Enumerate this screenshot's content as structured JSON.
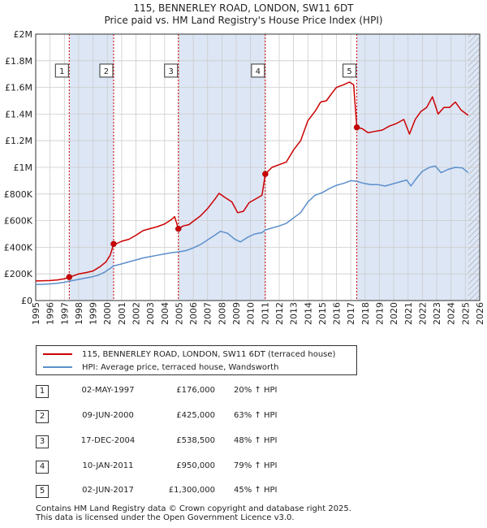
{
  "title_line1": "115, BENNERLEY ROAD, LONDON, SW11 6DT",
  "title_line2": "Price paid vs. HM Land Registry's House Price Index (HPI)",
  "colors": {
    "price": "#cc0000",
    "hpi": "#5b8fcc",
    "shade": "#dde6f5",
    "vline": "#cc0000",
    "grid": "#cccccc"
  },
  "chart_data": {
    "type": "line",
    "title": "Price paid vs. HM Land Registry's House Price Index (HPI)",
    "xlim": [
      1995,
      2026
    ],
    "ylim": [
      0,
      2000000
    ],
    "y_ticks": [
      {
        "value": 0,
        "label": "£0"
      },
      {
        "value": 200000,
        "label": "£200K"
      },
      {
        "value": 400000,
        "label": "£400K"
      },
      {
        "value": 600000,
        "label": "£600K"
      },
      {
        "value": 800000,
        "label": "£800K"
      },
      {
        "value": 1000000,
        "label": "£1M"
      },
      {
        "value": 1200000,
        "label": "£1.2M"
      },
      {
        "value": 1400000,
        "label": "£1.4M"
      },
      {
        "value": 1600000,
        "label": "£1.6M"
      },
      {
        "value": 1800000,
        "label": "£1.8M"
      },
      {
        "value": 2000000,
        "label": "£2M"
      }
    ],
    "x_ticks": [
      "1995",
      "1996",
      "1997",
      "1998",
      "1999",
      "2000",
      "2001",
      "2002",
      "2003",
      "2004",
      "2005",
      "2006",
      "2007",
      "2008",
      "2009",
      "2010",
      "2011",
      "2012",
      "2013",
      "2014",
      "2015",
      "2016",
      "2017",
      "2018",
      "2019",
      "2020",
      "2021",
      "2022",
      "2023",
      "2024",
      "2025",
      "2026"
    ],
    "series": [
      {
        "name": "115, BENNERLEY ROAD, LONDON, SW11 6DT (terraced house)",
        "color": "#cc0000",
        "points": [
          [
            1995.0,
            147000
          ],
          [
            1995.5,
            149000
          ],
          [
            1996.0,
            150000
          ],
          [
            1996.5,
            155000
          ],
          [
            1997.0,
            163000
          ],
          [
            1997.34,
            176000
          ],
          [
            1997.7,
            188000
          ],
          [
            1998.0,
            200000
          ],
          [
            1998.5,
            210000
          ],
          [
            1999.0,
            222000
          ],
          [
            1999.5,
            255000
          ],
          [
            1999.9,
            290000
          ],
          [
            2000.2,
            340000
          ],
          [
            2000.44,
            425000
          ],
          [
            2000.7,
            430000
          ],
          [
            2001.0,
            445000
          ],
          [
            2001.5,
            460000
          ],
          [
            2002.0,
            490000
          ],
          [
            2002.5,
            525000
          ],
          [
            2003.0,
            540000
          ],
          [
            2003.5,
            555000
          ],
          [
            2004.0,
            575000
          ],
          [
            2004.5,
            610000
          ],
          [
            2004.7,
            630000
          ],
          [
            2004.96,
            538500
          ],
          [
            2005.3,
            560000
          ],
          [
            2005.7,
            570000
          ],
          [
            2006.0,
            595000
          ],
          [
            2006.5,
            635000
          ],
          [
            2007.0,
            690000
          ],
          [
            2007.5,
            760000
          ],
          [
            2007.8,
            805000
          ],
          [
            2008.2,
            775000
          ],
          [
            2008.7,
            740000
          ],
          [
            2009.1,
            660000
          ],
          [
            2009.5,
            670000
          ],
          [
            2009.9,
            735000
          ],
          [
            2010.4,
            765000
          ],
          [
            2010.8,
            790000
          ],
          [
            2011.03,
            950000
          ],
          [
            2011.5,
            1000000
          ],
          [
            2012.0,
            1020000
          ],
          [
            2012.5,
            1040000
          ],
          [
            2013.0,
            1130000
          ],
          [
            2013.5,
            1200000
          ],
          [
            2014.0,
            1350000
          ],
          [
            2014.5,
            1420000
          ],
          [
            2014.9,
            1490000
          ],
          [
            2015.3,
            1500000
          ],
          [
            2015.7,
            1560000
          ],
          [
            2016.0,
            1600000
          ],
          [
            2016.5,
            1620000
          ],
          [
            2016.9,
            1640000
          ],
          [
            2017.2,
            1620000
          ],
          [
            2017.42,
            1300000
          ],
          [
            2017.8,
            1290000
          ],
          [
            2018.2,
            1260000
          ],
          [
            2018.7,
            1270000
          ],
          [
            2019.2,
            1280000
          ],
          [
            2019.7,
            1310000
          ],
          [
            2020.2,
            1330000
          ],
          [
            2020.7,
            1360000
          ],
          [
            2021.1,
            1250000
          ],
          [
            2021.5,
            1360000
          ],
          [
            2021.9,
            1420000
          ],
          [
            2022.3,
            1450000
          ],
          [
            2022.7,
            1530000
          ],
          [
            2023.1,
            1400000
          ],
          [
            2023.5,
            1450000
          ],
          [
            2023.9,
            1450000
          ],
          [
            2024.3,
            1490000
          ],
          [
            2024.7,
            1430000
          ],
          [
            2025.2,
            1390000
          ]
        ]
      },
      {
        "name": "HPI: Average price, terraced house, Wandsworth",
        "color": "#5b8fcc",
        "points": [
          [
            1995.0,
            120000
          ],
          [
            1995.5,
            122000
          ],
          [
            1996.0,
            125000
          ],
          [
            1996.5,
            130000
          ],
          [
            1997.0,
            137000
          ],
          [
            1997.34,
            146000
          ],
          [
            1997.8,
            155000
          ],
          [
            1998.3,
            165000
          ],
          [
            1998.8,
            175000
          ],
          [
            1999.3,
            188000
          ],
          [
            1999.8,
            212000
          ],
          [
            2000.44,
            260000
          ],
          [
            2001.0,
            275000
          ],
          [
            2001.5,
            290000
          ],
          [
            2002.0,
            305000
          ],
          [
            2002.5,
            320000
          ],
          [
            2003.0,
            330000
          ],
          [
            2003.5,
            340000
          ],
          [
            2004.0,
            350000
          ],
          [
            2004.5,
            360000
          ],
          [
            2004.96,
            365000
          ],
          [
            2005.5,
            375000
          ],
          [
            2006.0,
            395000
          ],
          [
            2006.5,
            420000
          ],
          [
            2007.0,
            455000
          ],
          [
            2007.5,
            490000
          ],
          [
            2007.9,
            520000
          ],
          [
            2008.4,
            505000
          ],
          [
            2008.9,
            460000
          ],
          [
            2009.3,
            440000
          ],
          [
            2009.8,
            475000
          ],
          [
            2010.3,
            500000
          ],
          [
            2010.8,
            510000
          ],
          [
            2011.03,
            530000
          ],
          [
            2011.5,
            545000
          ],
          [
            2012.0,
            560000
          ],
          [
            2012.5,
            580000
          ],
          [
            2013.0,
            620000
          ],
          [
            2013.5,
            660000
          ],
          [
            2014.0,
            740000
          ],
          [
            2014.5,
            790000
          ],
          [
            2015.0,
            810000
          ],
          [
            2015.5,
            840000
          ],
          [
            2016.0,
            865000
          ],
          [
            2016.5,
            880000
          ],
          [
            2017.0,
            900000
          ],
          [
            2017.42,
            895000
          ],
          [
            2017.9,
            880000
          ],
          [
            2018.4,
            870000
          ],
          [
            2018.9,
            870000
          ],
          [
            2019.4,
            860000
          ],
          [
            2019.9,
            875000
          ],
          [
            2020.4,
            890000
          ],
          [
            2020.9,
            905000
          ],
          [
            2021.2,
            860000
          ],
          [
            2021.6,
            920000
          ],
          [
            2022.0,
            970000
          ],
          [
            2022.5,
            1000000
          ],
          [
            2022.9,
            1010000
          ],
          [
            2023.3,
            960000
          ],
          [
            2023.8,
            985000
          ],
          [
            2024.3,
            1000000
          ],
          [
            2024.8,
            995000
          ],
          [
            2025.2,
            960000
          ]
        ]
      }
    ],
    "sales": [
      {
        "label": "1",
        "x": 1997.34,
        "price": 176000
      },
      {
        "label": "2",
        "x": 2000.44,
        "price": 425000
      },
      {
        "label": "3",
        "x": 2004.96,
        "price": 538500
      },
      {
        "label": "4",
        "x": 2011.03,
        "price": 950000
      },
      {
        "label": "5",
        "x": 2017.42,
        "price": 1300000
      }
    ],
    "marker_label_value": 1720000,
    "future_hatch_from": 2025.2,
    "shaded_periods": [
      [
        1997.34,
        2000.44
      ],
      [
        2004.96,
        2011.03
      ],
      [
        2017.42,
        2026
      ]
    ]
  },
  "legend": {
    "price_label": "115, BENNERLEY ROAD, LONDON, SW11 6DT (terraced house)",
    "hpi_label": "HPI: Average price, terraced house, Wandsworth"
  },
  "transactions": [
    {
      "num": "1",
      "date": "02-MAY-1997",
      "price": "£176,000",
      "hpi": "20% ↑ HPI"
    },
    {
      "num": "2",
      "date": "09-JUN-2000",
      "price": "£425,000",
      "hpi": "63% ↑ HPI"
    },
    {
      "num": "3",
      "date": "17-DEC-2004",
      "price": "£538,500",
      "hpi": "48% ↑ HPI"
    },
    {
      "num": "4",
      "date": "10-JAN-2011",
      "price": "£950,000",
      "hpi": "79% ↑ HPI"
    },
    {
      "num": "5",
      "date": "02-JUN-2017",
      "price": "£1,300,000",
      "hpi": "45% ↑ HPI"
    }
  ],
  "footer": {
    "line1": "Contains HM Land Registry data © Crown copyright and database right 2025.",
    "line2": "This data is licensed under the Open Government Licence v3.0."
  }
}
